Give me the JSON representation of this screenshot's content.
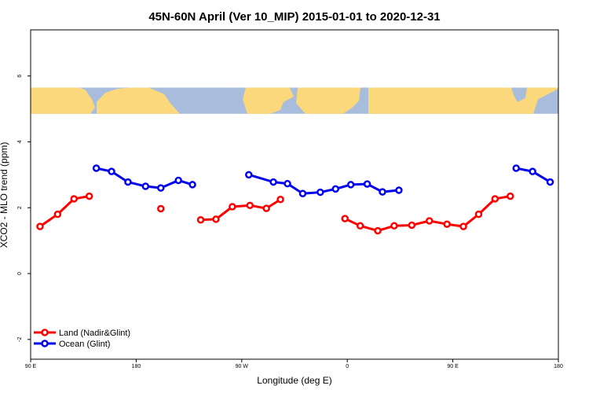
{
  "chart_data": {
    "type": "line",
    "title": "45N-60N April (Ver 10_MIP)   2015-01-01 to 2020-12-31",
    "xlabel": "Longitude (deg E)",
    "ylabel": "XCO2 - MLO trend (ppm)",
    "xlim": [
      90,
      540
    ],
    "ylim": [
      -2.6,
      7.4
    ],
    "x_ticks": [
      {
        "value": 90,
        "label": "90 E"
      },
      {
        "value": 180,
        "label": "180"
      },
      {
        "value": 270,
        "label": "90 W"
      },
      {
        "value": 360,
        "label": "0"
      },
      {
        "value": 450,
        "label": "90 E"
      },
      {
        "value": 540,
        "label": "180"
      }
    ],
    "y_ticks": [
      {
        "value": -2,
        "label": "-2"
      },
      {
        "value": 0,
        "label": "0"
      },
      {
        "value": 2,
        "label": "2"
      },
      {
        "value": 4,
        "label": "4"
      },
      {
        "value": 6,
        "label": "6"
      }
    ],
    "map_strip": {
      "y_top": 5.65,
      "y_bottom": 4.85,
      "ocean_color": "#a8bcdc",
      "land_color": "#fcd87c"
    },
    "legend_position": "bottom-left",
    "series": [
      {
        "name": "Land (Nadir&Glint)",
        "color": "#ff0000",
        "segments": [
          [
            [
              98,
              1.43
            ],
            [
              113,
              1.8
            ],
            [
              127,
              2.27
            ],
            [
              140,
              2.35
            ]
          ],
          [
            [
              201,
              1.97
            ]
          ],
          [
            [
              235,
              1.63
            ],
            [
              248,
              1.65
            ],
            [
              262,
              2.03
            ],
            [
              277,
              2.07
            ],
            [
              291,
              1.98
            ],
            [
              303,
              2.25
            ]
          ],
          [
            [
              358,
              1.67
            ],
            [
              371,
              1.45
            ],
            [
              386,
              1.3
            ],
            [
              400,
              1.45
            ],
            [
              415,
              1.47
            ],
            [
              430,
              1.6
            ],
            [
              445,
              1.5
            ],
            [
              459,
              1.43
            ],
            [
              472,
              1.8
            ],
            [
              486,
              2.27
            ],
            [
              499,
              2.35
            ]
          ]
        ]
      },
      {
        "name": "Ocean (Glint)",
        "color": "#0000ee",
        "segments": [
          [
            [
              146,
              3.2
            ],
            [
              159,
              3.1
            ],
            [
              173,
              2.78
            ],
            [
              188,
              2.65
            ],
            [
              201,
              2.6
            ],
            [
              216,
              2.83
            ],
            [
              228,
              2.7
            ]
          ],
          [
            [
              276,
              3.0
            ],
            [
              297,
              2.78
            ],
            [
              309,
              2.73
            ],
            [
              322,
              2.43
            ],
            [
              337,
              2.47
            ],
            [
              350,
              2.57
            ],
            [
              363,
              2.7
            ],
            [
              377,
              2.72
            ],
            [
              390,
              2.48
            ],
            [
              404,
              2.53
            ]
          ],
          [
            [
              504,
              3.2
            ],
            [
              518,
              3.1
            ],
            [
              533,
              2.78
            ]
          ]
        ]
      }
    ]
  }
}
